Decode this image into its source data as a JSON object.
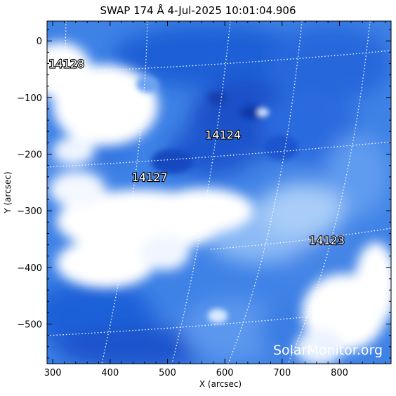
{
  "title": "SWAP 174 Å  4-Jul-2025 10:01:04.906",
  "xlabel": "X (arcsec)",
  "ylabel": "Y (arcsec)",
  "xticks": [
    "300",
    "400",
    "500",
    "600",
    "700",
    "800"
  ],
  "yticks": [
    "0",
    "−100",
    "−200",
    "−300",
    "−400",
    "−500"
  ],
  "xlim": [
    290,
    890
  ],
  "ylim": [
    -570,
    35
  ],
  "regions": [
    {
      "id": "14128",
      "x": 324,
      "y": -40
    },
    {
      "id": "14124",
      "x": 597,
      "y": -165
    },
    {
      "id": "14127",
      "x": 469,
      "y": -240
    },
    {
      "id": "14123",
      "x": 778,
      "y": -352
    }
  ],
  "watermark": "SolarMonitor.org",
  "colors": {
    "colormap_dark": "#0a2a9a",
    "colormap_mid": "#3b7fe6",
    "colormap_light": "#ffffff",
    "grid": "#ffffff",
    "frame": "#000000"
  }
}
